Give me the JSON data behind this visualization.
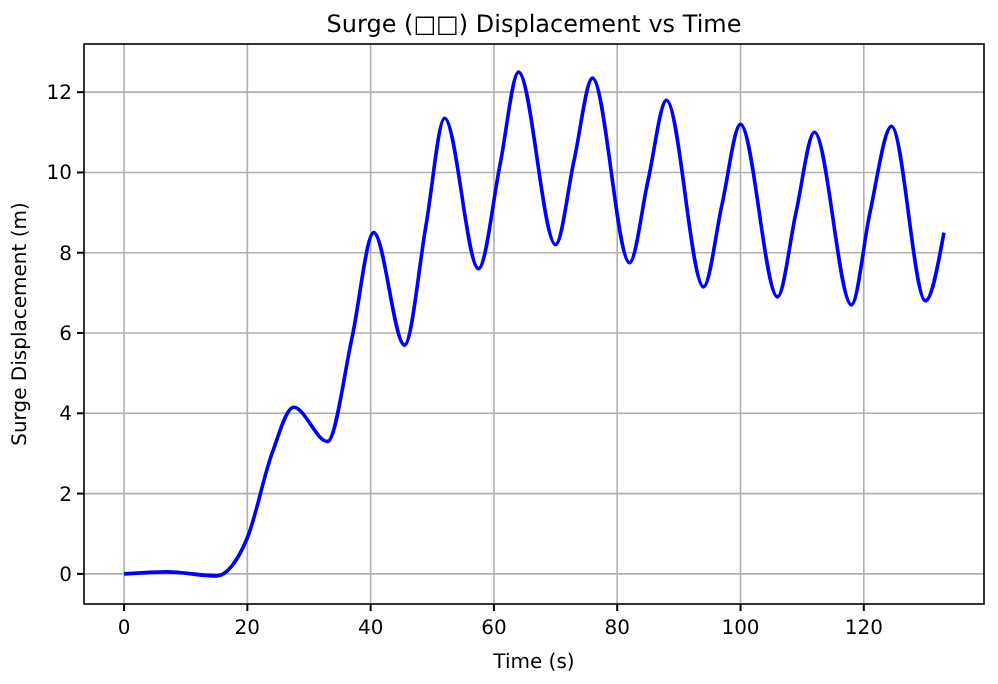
{
  "chart_data": {
    "type": "line",
    "title": "Surge (□□) Displacement vs Time",
    "xlabel": "Time (s)",
    "ylabel": "Surge Displacement (m)",
    "x": [
      0,
      7,
      15,
      17.5,
      20,
      24,
      27.5,
      33,
      37,
      40.5,
      45.5,
      49,
      52,
      57.5,
      61,
      64,
      70,
      73,
      76,
      82,
      85,
      88,
      94,
      97,
      100,
      106,
      109,
      112,
      118,
      121,
      124.5,
      130,
      133
    ],
    "series": [
      {
        "color": "#0000ff",
        "values": [
          0,
          0.05,
          -0.05,
          0.2,
          0.9,
          3.0,
          4.15,
          3.3,
          5.9,
          8.5,
          5.7,
          8.7,
          11.35,
          7.6,
          10.2,
          12.5,
          8.2,
          10.3,
          12.35,
          7.75,
          9.8,
          11.8,
          7.15,
          9.2,
          11.2,
          6.9,
          9.0,
          11.0,
          6.7,
          9.0,
          11.15,
          6.8,
          8.5
        ]
      }
    ],
    "xlim": [
      -6.5,
      139.5
    ],
    "ylim": [
      -0.75,
      13.2
    ],
    "xticks": [
      0,
      20,
      40,
      60,
      80,
      100,
      120
    ],
    "yticks": [
      0,
      2,
      4,
      6,
      8,
      10,
      12
    ],
    "grid": true,
    "line_style": "solid",
    "marker": "none"
  }
}
